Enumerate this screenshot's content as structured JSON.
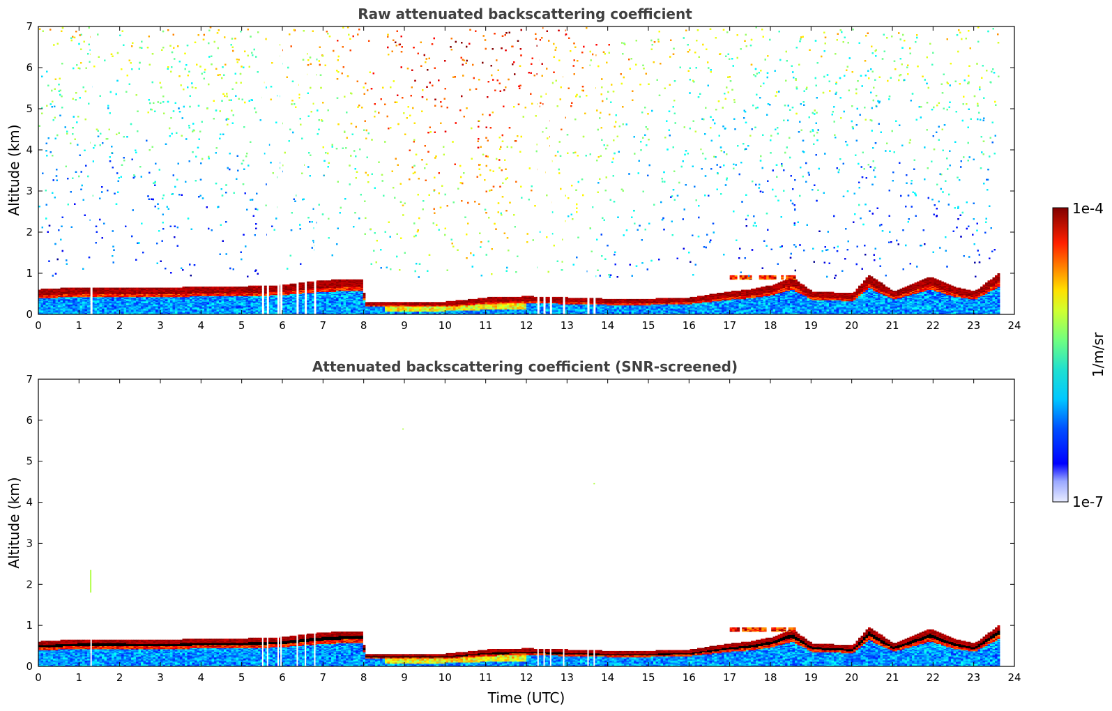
{
  "chart_data": [
    {
      "type": "heatmap",
      "title": "Raw attenuated backscattering coefficient",
      "xlabel": "",
      "ylabel": "Altitude (km)",
      "xlim": [
        0,
        24
      ],
      "ylim": [
        0,
        7
      ],
      "xticks": [
        "0",
        "1",
        "2",
        "3",
        "4",
        "5",
        "6",
        "7",
        "8",
        "9",
        "10",
        "11",
        "12",
        "13",
        "14",
        "15",
        "16",
        "17",
        "18",
        "19",
        "20",
        "21",
        "22",
        "23",
        "24"
      ],
      "yticks": [
        "0",
        "1",
        "2",
        "3",
        "4",
        "5",
        "6",
        "7"
      ],
      "data_end_time": 23.6,
      "gaps": [
        1.28,
        5.5,
        5.62,
        5.88,
        5.95,
        6.35,
        6.55,
        6.78,
        12.27,
        12.42,
        12.58,
        12.9,
        13.5,
        13.65
      ],
      "boundary_layer_top_km": [
        [
          0,
          0.55
        ],
        [
          1,
          0.6
        ],
        [
          2,
          0.6
        ],
        [
          3,
          0.58
        ],
        [
          4,
          0.62
        ],
        [
          5,
          0.62
        ],
        [
          5.9,
          0.65
        ],
        [
          6.8,
          0.75
        ],
        [
          7.5,
          0.8
        ],
        [
          7.95,
          0.8
        ],
        [
          8.0,
          0.25
        ],
        [
          9,
          0.25
        ],
        [
          10,
          0.25
        ],
        [
          11,
          0.35
        ],
        [
          12,
          0.38
        ],
        [
          13,
          0.35
        ],
        [
          14,
          0.32
        ],
        [
          15,
          0.32
        ],
        [
          16,
          0.35
        ],
        [
          17,
          0.5
        ],
        [
          17.5,
          0.55
        ],
        [
          18,
          0.65
        ],
        [
          18.5,
          0.85
        ],
        [
          19,
          0.5
        ],
        [
          20,
          0.45
        ],
        [
          20.4,
          0.9
        ],
        [
          21,
          0.5
        ],
        [
          21.9,
          0.85
        ],
        [
          22.5,
          0.6
        ],
        [
          23,
          0.5
        ],
        [
          23.6,
          0.95
        ]
      ],
      "elevated_layer": {
        "time_range": [
          17.0,
          18.6
        ],
        "altitude_range_km": [
          0.85,
          0.95
        ]
      }
    },
    {
      "type": "heatmap",
      "title": "Attenuated backscattering coefficient (SNR-screened)",
      "xlabel": "Time (UTC)",
      "ylabel": "Altitude (km)",
      "xlim": [
        0,
        24
      ],
      "ylim": [
        0,
        7
      ],
      "xticks": [
        "0",
        "1",
        "2",
        "3",
        "4",
        "5",
        "6",
        "7",
        "8",
        "9",
        "10",
        "11",
        "12",
        "13",
        "14",
        "15",
        "16",
        "17",
        "18",
        "19",
        "20",
        "21",
        "22",
        "23",
        "24"
      ],
      "yticks": [
        "0",
        "1",
        "2",
        "3",
        "4",
        "5",
        "6",
        "7"
      ],
      "data_end_time": 23.6,
      "isolated_points": [
        {
          "time": 1.27,
          "altitude_range_km": [
            1.8,
            2.35
          ]
        },
        {
          "time": 8.95,
          "altitude_range_km": [
            5.77,
            5.8
          ]
        },
        {
          "time": 13.65,
          "altitude_range_km": [
            4.44,
            4.47
          ]
        }
      ]
    }
  ],
  "colorbar": {
    "max_label": "1e-4",
    "min_label": "1e-7",
    "units_label": "1/m/sr",
    "scale": "log",
    "colormap": "jet"
  }
}
